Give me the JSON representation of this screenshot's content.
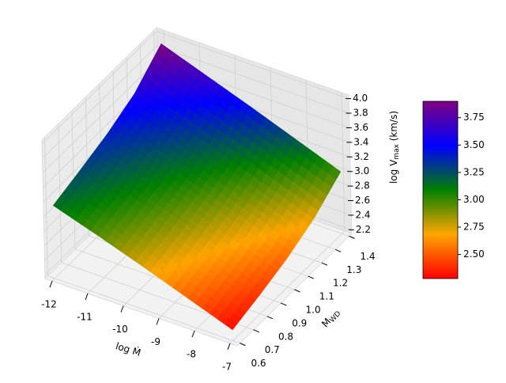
{
  "chart_data": {
    "type": "surface",
    "xlabel": "log Ṁ",
    "ylabel": [
      "M",
      "WD"
    ],
    "zlabel": [
      "log V",
      "max",
      " (km/s)"
    ],
    "x": [
      -12,
      -10.75,
      -9.5,
      -8.25,
      -7
    ],
    "y": [
      0.6,
      0.8,
      1.0,
      1.2,
      1.4
    ],
    "z": [
      [
        3.15,
        2.95,
        2.74,
        2.52,
        2.3
      ],
      [
        3.27,
        3.06,
        2.85,
        2.63,
        2.41
      ],
      [
        3.4,
        3.19,
        2.98,
        2.76,
        2.54
      ],
      [
        3.58,
        3.37,
        3.16,
        2.94,
        2.72
      ],
      [
        3.9,
        3.68,
        3.46,
        3.23,
        3.0
      ]
    ],
    "xlim": [
      -12.2,
      -6.8
    ],
    "ylim": [
      0.58,
      1.42
    ],
    "zlim": [
      2.15,
      4.05
    ],
    "xticks": [
      -12,
      -11,
      -10,
      -9,
      -8,
      -7
    ],
    "yticks": [
      0.6,
      0.7,
      0.8,
      0.9,
      {
        "value": 1.0,
        "label": "1.0"
      },
      1.1,
      1.2,
      1.3,
      1.4
    ],
    "zticks": [
      2.2,
      2.4,
      2.6,
      2.8,
      {
        "value": 3.0,
        "label": "3.0"
      },
      3.2,
      3.4,
      3.6,
      3.8,
      {
        "value": 4.0,
        "label": "4.0"
      }
    ],
    "grid": true,
    "colormap": [
      "#ff0000",
      "#ffa500",
      "#008000",
      "#0000ff",
      "#800080"
    ],
    "colorbar": {
      "clim": [
        2.28,
        3.9
      ],
      "ticks": [
        {
          "value": 2.5,
          "label": "2.50"
        },
        {
          "value": 2.75,
          "label": "2.75"
        },
        {
          "value": 3.0,
          "label": "3.00"
        },
        {
          "value": 3.25,
          "label": "3.25"
        },
        {
          "value": 3.5,
          "label": "3.50"
        },
        {
          "value": 3.75,
          "label": "3.75"
        }
      ]
    }
  }
}
